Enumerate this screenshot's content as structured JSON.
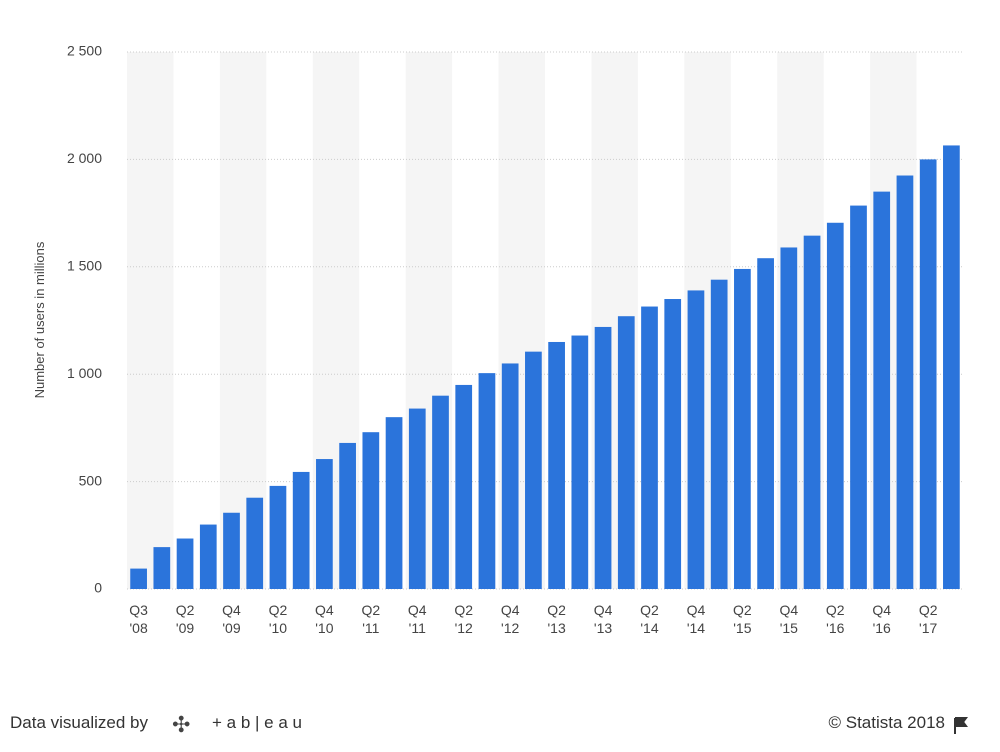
{
  "chart_data": {
    "type": "bar",
    "y_label": "Number of users in millions",
    "categories": [
      "Q3 '08",
      null,
      "Q2 '09",
      null,
      "Q4 '09",
      null,
      "Q2 '10",
      null,
      "Q4 '10",
      null,
      "Q2 '11",
      null,
      "Q4 '11",
      null,
      "Q2 '12",
      null,
      "Q4 '12",
      null,
      "Q2 '13",
      null,
      "Q4 '13",
      null,
      "Q2 '14",
      null,
      "Q4 '14",
      null,
      "Q2 '15",
      null,
      "Q4 '15",
      null,
      "Q2 '16",
      null,
      "Q4 '16",
      null,
      "Q2 '17",
      null
    ],
    "values": [
      95,
      195,
      235,
      300,
      355,
      425,
      480,
      545,
      605,
      680,
      730,
      800,
      840,
      900,
      950,
      1005,
      1050,
      1105,
      1150,
      1180,
      1220,
      1270,
      1315,
      1350,
      1390,
      1440,
      1490,
      1540,
      1590,
      1645,
      1705,
      1785,
      1850,
      1925,
      2000,
      2065
    ],
    "color": "#2b74db",
    "ylim": [
      0,
      2500
    ],
    "yticks": [
      0,
      500,
      {
        "value": 1000,
        "label": "1 000"
      },
      {
        "value": 1500,
        "label": "1 500"
      },
      {
        "value": 2000,
        "label": "2 000"
      },
      {
        "value": 2500,
        "label": "2 500"
      }
    ],
    "grid": true
  },
  "footer": {
    "credit": "Data visualized by",
    "brand": "+ a b | e a u",
    "source": "© Statista 2018"
  }
}
